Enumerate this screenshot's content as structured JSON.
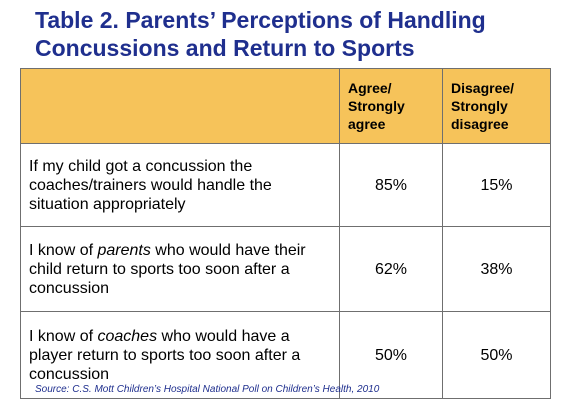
{
  "title": {
    "line1": "Table 2. Parents’ Perceptions of Handling",
    "line2": "Concussions and Return to Sports"
  },
  "table": {
    "headers": [
      {
        "line1": "Agree/",
        "line2": "Strongly",
        "line3": "agree"
      },
      {
        "line1": "Disagree/",
        "line2": "Strongly",
        "line3": "disagree"
      }
    ],
    "rows": [
      {
        "statement_parts": [
          "If my child got a concussion the coaches/trainers would handle the situation appropriately"
        ],
        "agree": "85%",
        "disagree": "15%"
      },
      {
        "pre": "I know of ",
        "emph": "parents",
        "post": " who would have their child return to sports too soon after a concussion",
        "agree": "62%",
        "disagree": "38%"
      },
      {
        "pre": "I know of ",
        "emph": "coaches",
        "post": " who would have a player return to sports too soon after a concussion",
        "agree": "50%",
        "disagree": "50%"
      }
    ]
  },
  "source": "Source: C.S. Mott Children’s Hospital National Poll on Children’s Health, 2010"
}
